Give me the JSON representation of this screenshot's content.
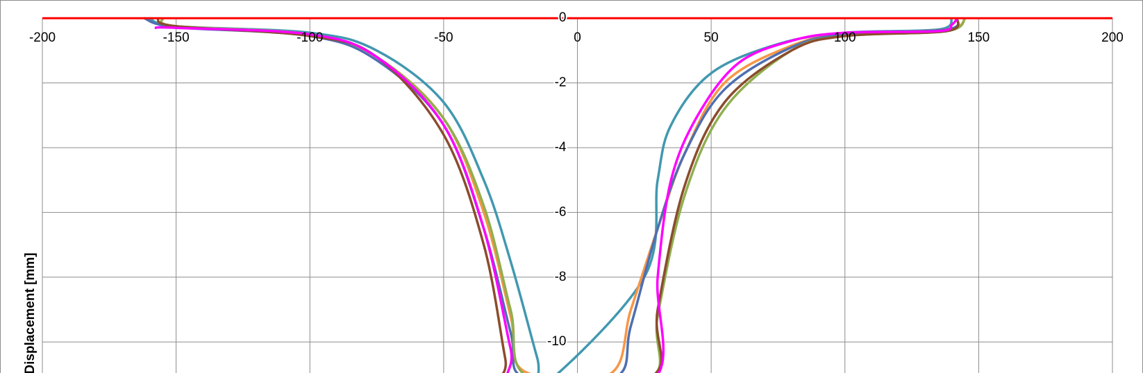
{
  "chart_data": {
    "type": "line",
    "y_label": "Displacement [mm]",
    "xlim": [
      -200,
      200
    ],
    "xticks": [
      -200,
      -150,
      -100,
      -50,
      0,
      50,
      100,
      150,
      200
    ],
    "ylim": [
      -11,
      0
    ],
    "yticks": [
      0,
      -2,
      -4,
      -6,
      -8,
      -10
    ],
    "grid": true,
    "series": [
      {
        "color": "#ff0000",
        "x": [
          -200,
          200
        ],
        "values": [
          0,
          0
        ]
      },
      {
        "color": "#4198af",
        "x": [
          -160,
          -150,
          -100,
          -75,
          -50,
          -35,
          -25,
          -15,
          -12,
          25,
          30,
          35,
          50,
          75,
          100,
          135,
          140
        ],
        "values": [
          0,
          -0.25,
          -0.45,
          -1.0,
          -2.6,
          -5.0,
          -7.5,
          -10.5,
          -11.3,
          -8,
          -5,
          -3.3,
          -1.7,
          -0.8,
          -0.45,
          -0.35,
          0
        ]
      },
      {
        "color": "#f79646",
        "x": [
          -155,
          -150,
          -100,
          -75,
          -50,
          -35,
          -25,
          -20,
          12,
          20,
          30,
          40,
          55,
          80,
          100,
          138,
          145
        ],
        "values": [
          0,
          -0.25,
          -0.5,
          -1.2,
          -3.1,
          -6.0,
          -9.2,
          -10.9,
          -11,
          -9,
          -6.5,
          -4.2,
          -2.0,
          -0.85,
          -0.5,
          -0.35,
          0
        ]
      },
      {
        "color": "#4f6fb0",
        "x": [
          -162,
          -150,
          -100,
          -75,
          -50,
          -35,
          -25,
          -20,
          14,
          20,
          30,
          40,
          55,
          80,
          100,
          138,
          142
        ],
        "values": [
          0,
          -0.28,
          -0.55,
          -1.3,
          -3.3,
          -6.5,
          -9.7,
          -11.1,
          -11.1,
          -9.5,
          -6.5,
          -4.2,
          -2.2,
          -0.9,
          -0.5,
          -0.35,
          0
        ]
      },
      {
        "color": "#8faf4f",
        "x": [
          -155,
          -150,
          -100,
          -75,
          -50,
          -35,
          -25,
          -18,
          27,
          30,
          40,
          55,
          80,
          100,
          138,
          145
        ],
        "values": [
          0,
          -0.25,
          -0.5,
          -1.2,
          -3.1,
          -5.8,
          -9.0,
          -11.1,
          -11.1,
          -9.2,
          -5.5,
          -2.8,
          -1.0,
          -0.55,
          -0.4,
          0
        ]
      },
      {
        "color": "#8b4c2d",
        "x": [
          -157,
          -150,
          -100,
          -75,
          -50,
          -35,
          -27,
          -25,
          27,
          30,
          40,
          55,
          80,
          100,
          138,
          142
        ],
        "values": [
          0,
          -0.25,
          -0.55,
          -1.2,
          -3.6,
          -7.0,
          -10.5,
          -11.2,
          -11.1,
          -9.0,
          -5.2,
          -2.6,
          -1.0,
          -0.55,
          -0.4,
          0
        ]
      },
      {
        "color": "#ff00ff",
        "x": [
          -158,
          -150,
          -100,
          -75,
          -50,
          -35,
          -25,
          -22,
          28,
          30,
          35,
          45,
          60,
          80,
          100,
          135,
          140,
          142
        ],
        "values": [
          -0.3,
          -0.3,
          -0.5,
          -1.2,
          -3.3,
          -6.5,
          -10.2,
          -11.2,
          -11.2,
          -8,
          -5,
          -3,
          -1.4,
          -0.7,
          -0.45,
          -0.4,
          -0.2,
          0
        ]
      }
    ]
  }
}
